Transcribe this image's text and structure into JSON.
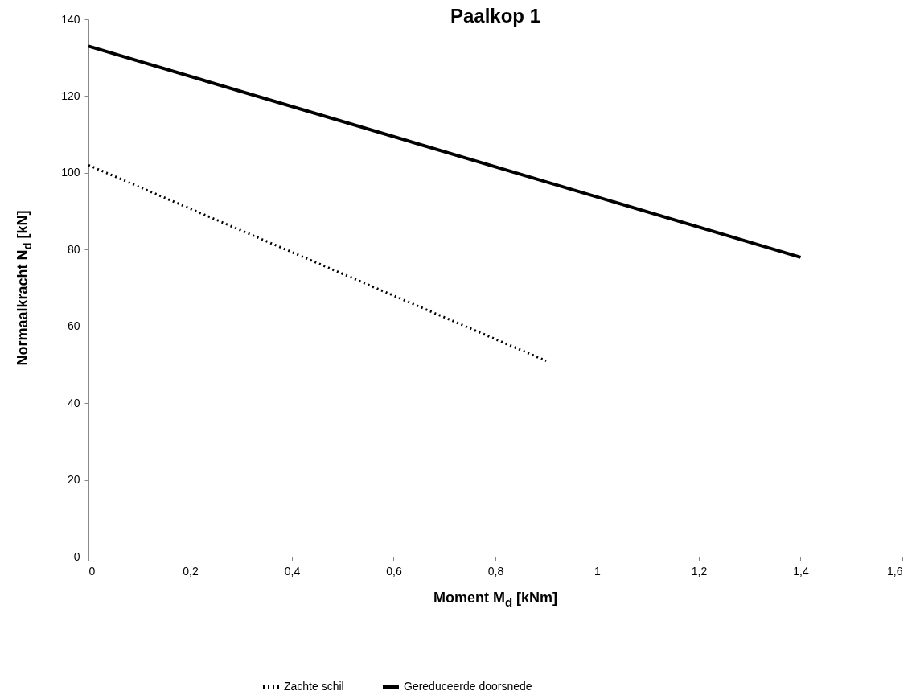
{
  "chart_data": {
    "type": "line",
    "title": "Paalkop 1",
    "xlabel": "Moment M$_{d}$ [kNm]",
    "ylabel": "Normaalkracht N$_{d}$ [kN]",
    "series": [
      {
        "name": "Zachte schil",
        "color": "#000000",
        "line_style": "dotted",
        "x": [
          0,
          0.9
        ],
        "values": [
          102,
          51
        ]
      },
      {
        "name": "Gereduceerde doorsnede",
        "color": "#000000",
        "line_style": "solid",
        "x": [
          0,
          1.4
        ],
        "values": [
          133,
          78
        ]
      }
    ],
    "xlim": [
      0,
      1.6
    ],
    "ylim": [
      0,
      140
    ],
    "xticks": [
      0,
      {
        "value": 0.2,
        "label": "0,2"
      },
      {
        "value": 0.4,
        "label": "0,4"
      },
      {
        "value": 0.6,
        "label": "0,6"
      },
      {
        "value": 0.8,
        "label": "0,8"
      },
      1,
      {
        "value": 1.2,
        "label": "1,2"
      },
      {
        "value": 1.4,
        "label": "1,4"
      },
      {
        "value": 1.6,
        "label": "1,6"
      }
    ],
    "yticks": [
      0,
      20,
      40,
      60,
      80,
      100,
      120,
      140
    ],
    "grid": false,
    "legend": "bottom",
    "marker": "none"
  }
}
